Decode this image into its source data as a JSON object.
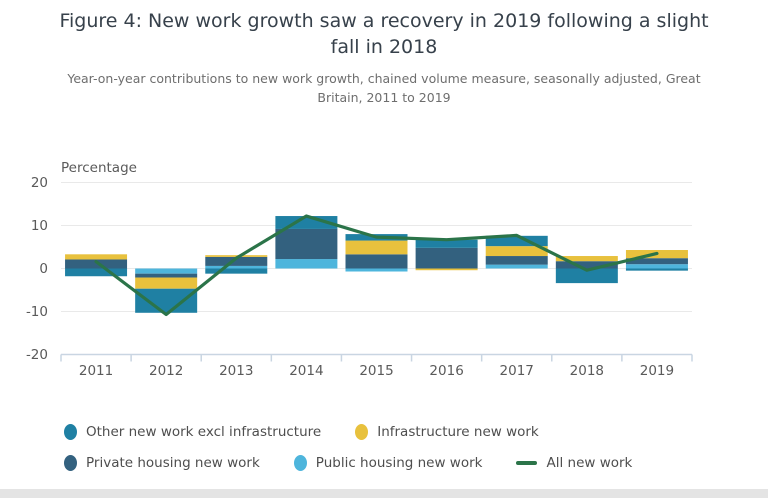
{
  "chart_data": {
    "type": "bar",
    "stacked": true,
    "overlay": "line",
    "title": "Figure 4: New work growth saw a recovery in 2019 following a slight fall in 2018",
    "subtitle": "Year-on-year contributions to new work growth, chained volume measure, seasonally adjusted, Great Britain, 2011 to 2019",
    "ylabel": "Percentage",
    "xlabel": "",
    "categories": [
      "2011",
      "2012",
      "2013",
      "2014",
      "2015",
      "2016",
      "2017",
      "2018",
      "2019"
    ],
    "series": [
      {
        "name": "Public housing new work",
        "color": "#4EB5DC",
        "values": [
          0,
          -1.2,
          0.6,
          2.2,
          -0.7,
          0,
          0.9,
          0,
          1.0
        ]
      },
      {
        "name": "Private housing new work",
        "color": "#33617F",
        "values": [
          2.1,
          -0.9,
          2.1,
          7.0,
          3.3,
          4.8,
          2.0,
          1.7,
          1.4
        ]
      },
      {
        "name": "Infrastructure new work",
        "color": "#E8C13D",
        "values": [
          1.2,
          -2.6,
          0.4,
          0,
          3.2,
          -0.4,
          2.3,
          1.2,
          1.9
        ]
      },
      {
        "name": "Other new work excl infrastructure",
        "color": "#1F80A3",
        "values": [
          -1.8,
          -5.6,
          -1.2,
          3.0,
          1.5,
          1.9,
          2.4,
          -3.4,
          -0.5
        ]
      }
    ],
    "line_series": {
      "name": "All new work",
      "color": "#2B7449",
      "values": [
        1.6,
        -10.7,
        2.4,
        12.2,
        7.3,
        6.7,
        7.7,
        -0.4,
        3.5
      ]
    },
    "ylim": [
      -20,
      20
    ],
    "yticks": [
      20,
      10,
      0,
      -10,
      -20
    ],
    "grid": true,
    "grid_color": "#E9E9E9",
    "axis_color": "#C9D5E2",
    "legend_position": "bottom"
  }
}
